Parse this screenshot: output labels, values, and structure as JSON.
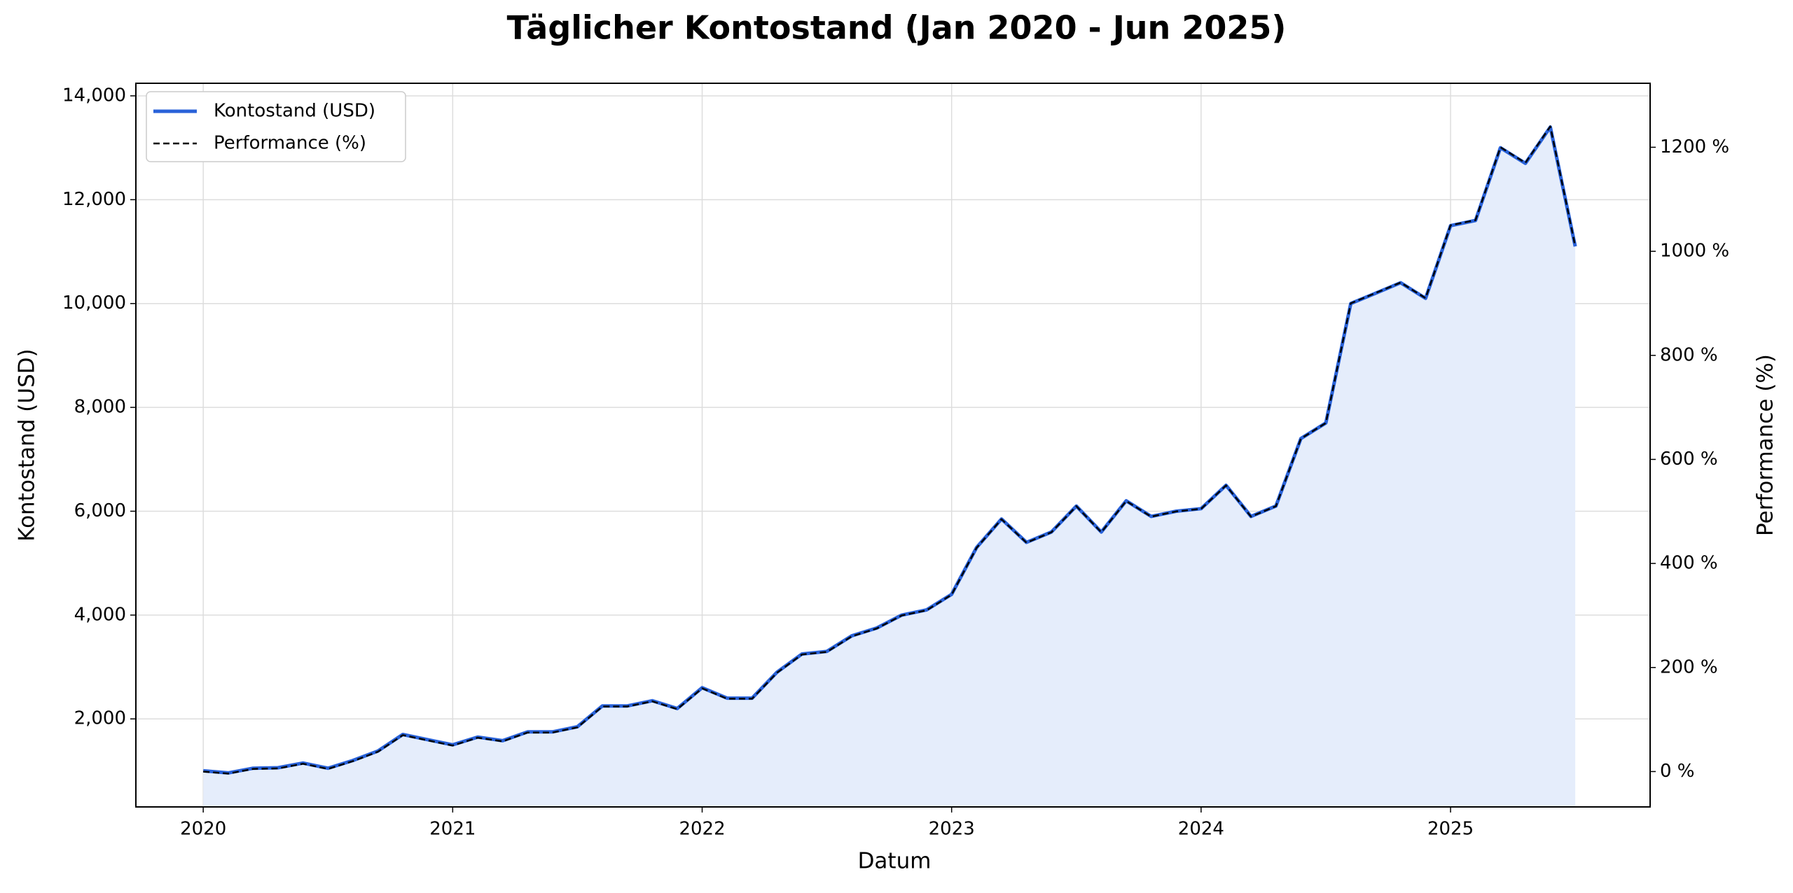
{
  "chart_data": {
    "type": "line",
    "title": "Täglicher Kontostand (Jan 2020 - Jun 2025)",
    "xlabel": "Datum",
    "ylabel": "Kontostand (USD)",
    "y2label": "Performance (%)",
    "x": [
      2020.0,
      2020.1,
      2020.2,
      2020.3,
      2020.4,
      2020.5,
      2020.6,
      2020.7,
      2020.8,
      2020.9,
      2021.0,
      2021.1,
      2021.2,
      2021.3,
      2021.4,
      2021.5,
      2021.6,
      2021.7,
      2021.8,
      2021.9,
      2022.0,
      2022.1,
      2022.2,
      2022.3,
      2022.4,
      2022.5,
      2022.6,
      2022.7,
      2022.8,
      2022.9,
      2023.0,
      2023.1,
      2023.2,
      2023.3,
      2023.4,
      2023.5,
      2023.6,
      2023.7,
      2023.8,
      2023.9,
      2024.0,
      2024.1,
      2024.2,
      2024.3,
      2024.4,
      2024.5,
      2024.6,
      2024.7,
      2024.8,
      2024.9,
      2025.0,
      2025.1,
      2025.2,
      2025.3,
      2025.4,
      2025.5
    ],
    "series": [
      {
        "name": "Kontostand (USD)",
        "color": "#2962d9",
        "fill_color": "#e5edfb",
        "linestyle": "solid",
        "values": [
          1000,
          960,
          1050,
          1060,
          1150,
          1050,
          1200,
          1380,
          1700,
          1600,
          1500,
          1650,
          1580,
          1750,
          1750,
          1850,
          2250,
          2250,
          2350,
          2200,
          2600,
          2400,
          2400,
          2900,
          3250,
          3300,
          3600,
          3750,
          4000,
          4100,
          4400,
          5300,
          5850,
          5400,
          5600,
          6100,
          5600,
          6200,
          5900,
          6000,
          6050,
          6500,
          5900,
          6100,
          7400,
          7700,
          10000,
          10200,
          10400,
          10100,
          11500,
          11600,
          13000,
          12700,
          13400,
          11100
        ]
      },
      {
        "name": "Performance (%)",
        "color": "#000000",
        "linestyle": "dashed",
        "axis": "y2",
        "values": [
          0,
          -4,
          5,
          6,
          15,
          5,
          20,
          38,
          70,
          60,
          50,
          65,
          58,
          75,
          75,
          85,
          125,
          125,
          135,
          120,
          160,
          140,
          140,
          190,
          225,
          230,
          260,
          275,
          300,
          310,
          340,
          430,
          485,
          440,
          460,
          510,
          460,
          520,
          490,
          500,
          505,
          550,
          490,
          510,
          640,
          670,
          900,
          920,
          940,
          910,
          1050,
          1060,
          1200,
          1170,
          1240,
          1010
        ]
      }
    ],
    "xlim": [
      2019.73,
      2025.8
    ],
    "xticks": [
      2020,
      2021,
      2022,
      2023,
      2024,
      2025
    ],
    "ylim": [
      305,
      14242
    ],
    "yticks": [
      {
        "value": 2000,
        "label": "2,000"
      },
      {
        "value": 4000,
        "label": "4,000"
      },
      {
        "value": 6000,
        "label": "6,000"
      },
      {
        "value": 8000,
        "label": "8,000"
      },
      {
        "value": 10000,
        "label": "10,000"
      },
      {
        "value": 12000,
        "label": "12,000"
      },
      {
        "value": 14000,
        "label": "14,000"
      }
    ],
    "y2lim": [
      -68,
      1323
    ],
    "y2ticks": [
      {
        "value": 0,
        "label": "0 %"
      },
      {
        "value": 200,
        "label": "200 %"
      },
      {
        "value": 400,
        "label": "400 %"
      },
      {
        "value": 600,
        "label": "600 %"
      },
      {
        "value": 800,
        "label": "800 %"
      },
      {
        "value": 1000,
        "label": "1000 %"
      },
      {
        "value": 1200,
        "label": "1200 %"
      }
    ],
    "grid": true,
    "legend": "upper left"
  }
}
